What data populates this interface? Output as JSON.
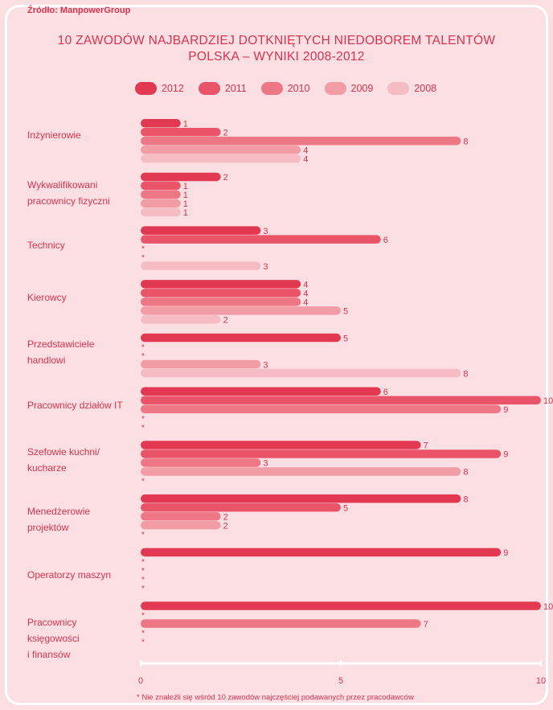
{
  "source": "Źródło: ManpowerGroup",
  "title_line1": "10 ZAWODÓW NAJBARDZIEJ DOTKNIĘTYCH NIEDOBOREM TALENTÓW",
  "title_line2": "POLSKA – WYNIKI 2008-2012",
  "footnote": "* Nie znaleźli się wśród 10 zawodów najczęściej podawanych przez pracodawców",
  "colors": {
    "background": "#fbdfe3",
    "text": "#d8334d",
    "2012": "#e33852",
    "2011": "#e95468",
    "2010": "#ee7786",
    "2009": "#f29ca6",
    "2008": "#f6bcc3"
  },
  "chart_data": {
    "type": "bar",
    "orientation": "horizontal",
    "categories": [
      "Inżynierowie",
      "Wykwalifikowani\npracownicy fizyczni",
      "Technicy",
      "Kierowcy",
      "Przedstawiciele\nhandlowi",
      "Pracownicy działów IT",
      "Szefowie kuchni/\nkucharze",
      "Menedżerowie\nprojektów",
      "Operatorzy maszyn",
      "Pracownicy\nksięgowości\ni finansów"
    ],
    "series": [
      {
        "name": "2012",
        "values": [
          1,
          2,
          3,
          4,
          5,
          6,
          7,
          8,
          9,
          10
        ]
      },
      {
        "name": "2011",
        "values": [
          2,
          1,
          6,
          4,
          null,
          10,
          9,
          5,
          null,
          null
        ]
      },
      {
        "name": "2010",
        "values": [
          8,
          1,
          null,
          4,
          null,
          9,
          3,
          2,
          null,
          7
        ]
      },
      {
        "name": "2009",
        "values": [
          4,
          1,
          null,
          5,
          3,
          null,
          8,
          2,
          null,
          null
        ]
      },
      {
        "name": "2008",
        "values": [
          4,
          1,
          3,
          2,
          8,
          null,
          null,
          null,
          null,
          null
        ]
      }
    ],
    "missing_marker": "*",
    "x_ticks": [
      0,
      5,
      10
    ],
    "xlim": [
      0,
      10
    ],
    "legend_position": "top",
    "grid": false
  }
}
